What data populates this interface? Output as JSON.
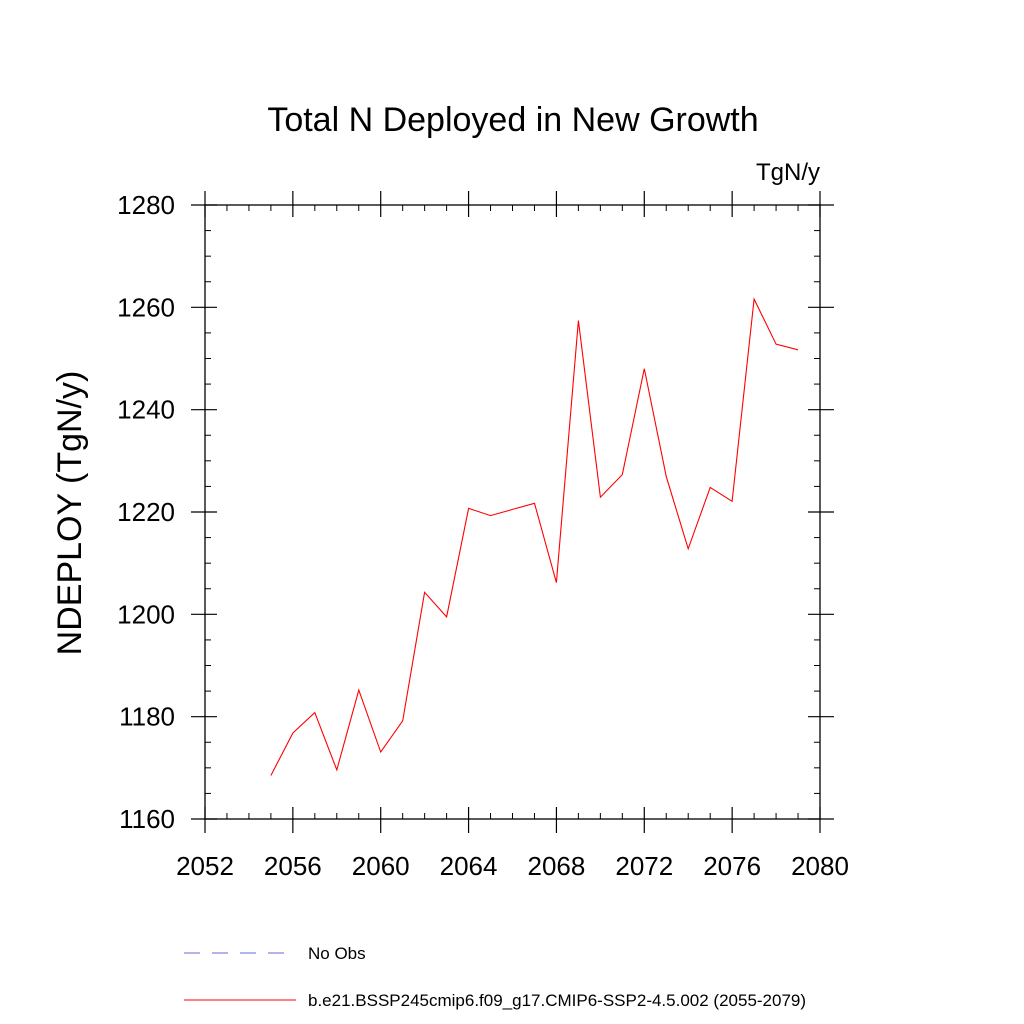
{
  "chart_data": {
    "type": "line",
    "title": "Total N Deployed in New Growth",
    "units_label": "TgN/y",
    "ylabel": "NDEPLOY  (TgN/y)",
    "xlabel": "",
    "xlim": [
      2052,
      2080
    ],
    "ylim": [
      1160,
      1280
    ],
    "x_ticks": [
      2052,
      2056,
      2060,
      2064,
      2068,
      2072,
      2076,
      2080
    ],
    "y_ticks": [
      1160,
      1180,
      1200,
      1220,
      1240,
      1260,
      1280
    ],
    "x_minor_step": 1,
    "y_minor_step": 5,
    "grid": false,
    "legend_position": "bottom",
    "series": [
      {
        "name": "b.e21.BSSP245cmip6.f09_g17.CMIP6-SSP2-4.5.002 (2055-2079)",
        "color": "#ff0000",
        "dash": "solid",
        "x": [
          2055,
          2056,
          2057,
          2058,
          2059,
          2060,
          2061,
          2062,
          2063,
          2064,
          2065,
          2066,
          2067,
          2068,
          2069,
          2070,
          2071,
          2072,
          2073,
          2074,
          2075,
          2076,
          2077,
          2078,
          2079
        ],
        "values": [
          1168.5,
          1176.8,
          1180.8,
          1169.6,
          1185.2,
          1173.1,
          1179.2,
          1204.3,
          1199.5,
          1220.7,
          1219.3,
          1220.5,
          1221.7,
          1206.2,
          1257.4,
          1222.9,
          1227.3,
          1248.0,
          1226.9,
          1212.8,
          1224.8,
          1222.1,
          1261.6,
          1252.8,
          1251.7
        ]
      }
    ],
    "legend": [
      {
        "label": "No Obs",
        "color": "#6a6ad8",
        "dash": "dashed"
      },
      {
        "label": "b.e21.BSSP245cmip6.f09_g17.CMIP6-SSP2-4.5.002 (2055-2079)",
        "color": "#ff0000",
        "dash": "solid"
      }
    ]
  }
}
